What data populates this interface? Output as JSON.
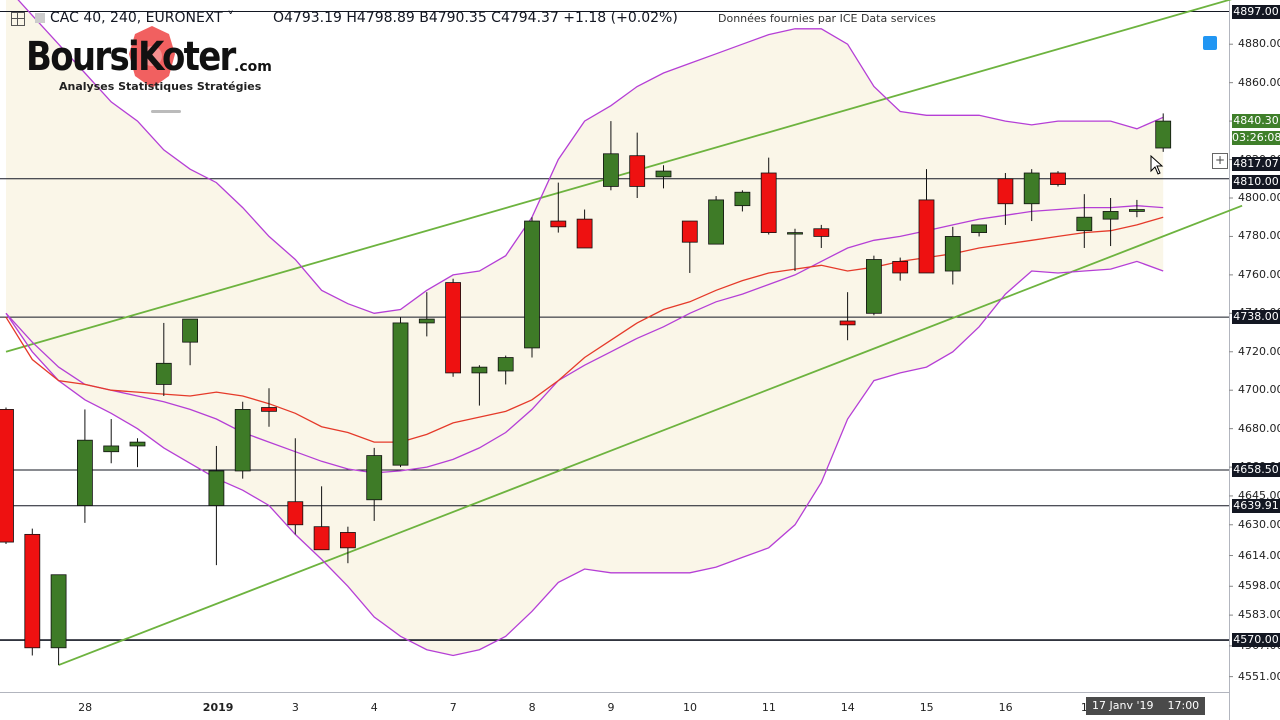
{
  "header": {
    "symbol": "CAC 40, 240, EURONEXT ˅",
    "ohlc": "O4793.19  H4798.89  B4790.35  C4794.37  +1.18 (+0.02%)",
    "source": "Données fournies par ICE Data services"
  },
  "logo": {
    "brand": "BoursiKoter",
    "domain": ".com",
    "tagline": "Analyses Statistiques Stratégies"
  },
  "tooltip": {
    "date": "17 Janv '19",
    "time": "17:00"
  },
  "price_tags": [
    {
      "label": "4897.00",
      "color": "#131722"
    },
    {
      "label": "4840.30",
      "color": "#3f7f2a"
    },
    {
      "label": "03:26:08",
      "color": "#3f7f2a"
    },
    {
      "label": "4817.07",
      "color": "#131722"
    },
    {
      "label": "4810.00",
      "color": "#131722"
    },
    {
      "label": "4738.00",
      "color": "#131722"
    },
    {
      "label": "4658.50",
      "color": "#131722"
    },
    {
      "label": "4639.91",
      "color": "#131722"
    },
    {
      "label": "4570.00",
      "color": "#131722"
    }
  ],
  "colors": {
    "up": "#3e7b27",
    "down": "#ee1111",
    "bollinger": "#b53fd6",
    "ma": "#e53a2a",
    "trend": "#6db33f",
    "band_fill": "#faf6e8"
  },
  "chart_data": {
    "type": "candlestick",
    "ylim": [
      4543,
      4903
    ],
    "yticks": [
      4551,
      4567,
      4583,
      4598,
      4614,
      4630,
      4645,
      4660,
      4680,
      4700,
      4720,
      4740,
      4760,
      4780,
      4800,
      4820,
      4840,
      4860,
      4880
    ],
    "ytick_labels": [
      "4551.00",
      "4567.00",
      "4583.00",
      "4598.00",
      "4614.00",
      "4630.00",
      "4645.00",
      "4660.00",
      "4680.00",
      "4700.00",
      "4720.00",
      "4740.00",
      "4760.00",
      "4780.00",
      "4800.00",
      "4820.00",
      "4840.00",
      "4860.00",
      "4880.00"
    ],
    "xtick_labels": [
      "28",
      "2019",
      "3",
      "4",
      "7",
      "8",
      "9",
      "10",
      "11",
      "14",
      "15",
      "16",
      "1"
    ],
    "xtick_positions": [
      3,
      8,
      11,
      14,
      17,
      20,
      23,
      26,
      29,
      32,
      35,
      38,
      41
    ],
    "horizontal_levels": [
      4897.0,
      4810.0,
      4738.0,
      4658.5,
      4639.91,
      4570.0
    ],
    "candles": [
      {
        "o": 4690,
        "h": 4691,
        "l": 4620,
        "c": 4621
      },
      {
        "o": 4625,
        "h": 4628,
        "l": 4562,
        "c": 4566
      },
      {
        "o": 4566,
        "h": 4604,
        "l": 4557,
        "c": 4604
      },
      {
        "o": 4640,
        "h": 4690,
        "l": 4631,
        "c": 4674
      },
      {
        "o": 4668,
        "h": 4685,
        "l": 4662,
        "c": 4671
      },
      {
        "o": 4671,
        "h": 4675,
        "l": 4660,
        "c": 4673
      },
      {
        "o": 4703,
        "h": 4735,
        "l": 4697,
        "c": 4714
      },
      {
        "o": 4725,
        "h": 4737,
        "l": 4713,
        "c": 4737
      },
      {
        "o": 4640,
        "h": 4671,
        "l": 4609,
        "c": 4658
      },
      {
        "o": 4658,
        "h": 4694,
        "l": 4654,
        "c": 4690
      },
      {
        "o": 4691,
        "h": 4701,
        "l": 4681,
        "c": 4689
      },
      {
        "o": 4642,
        "h": 4675,
        "l": 4625,
        "c": 4630
      },
      {
        "o": 4629,
        "h": 4650,
        "l": 4620,
        "c": 4617
      },
      {
        "o": 4626,
        "h": 4629,
        "l": 4610,
        "c": 4618
      },
      {
        "o": 4643,
        "h": 4670,
        "l": 4632,
        "c": 4666
      },
      {
        "o": 4661,
        "h": 4738,
        "l": 4660,
        "c": 4735
      },
      {
        "o": 4735,
        "h": 4751,
        "l": 4728,
        "c": 4737
      },
      {
        "o": 4756,
        "h": 4758,
        "l": 4707,
        "c": 4709
      },
      {
        "o": 4709,
        "h": 4713,
        "l": 4692,
        "c": 4712
      },
      {
        "o": 4710,
        "h": 4718,
        "l": 4703,
        "c": 4717
      },
      {
        "o": 4722,
        "h": 4790,
        "l": 4717,
        "c": 4788
      },
      {
        "o": 4788,
        "h": 4808,
        "l": 4782,
        "c": 4785
      },
      {
        "o": 4789,
        "h": 4794,
        "l": 4774,
        "c": 4774
      },
      {
        "o": 4806,
        "h": 4840,
        "l": 4804,
        "c": 4823
      },
      {
        "o": 4822,
        "h": 4834,
        "l": 4800,
        "c": 4806
      },
      {
        "o": 4811,
        "h": 4817,
        "l": 4805,
        "c": 4814
      },
      {
        "o": 4788,
        "h": 4788,
        "l": 4761,
        "c": 4777
      },
      {
        "o": 4776,
        "h": 4801,
        "l": 4776,
        "c": 4799
      },
      {
        "o": 4796,
        "h": 4804,
        "l": 4793,
        "c": 4803
      },
      {
        "o": 4813,
        "h": 4821,
        "l": 4781,
        "c": 4782
      },
      {
        "o": 4782,
        "h": 4784,
        "l": 4762,
        "c": 4782
      },
      {
        "o": 4784,
        "h": 4786,
        "l": 4774,
        "c": 4780
      },
      {
        "o": 4736,
        "h": 4751,
        "l": 4726,
        "c": 4734
      },
      {
        "o": 4740,
        "h": 4770,
        "l": 4739,
        "c": 4768
      },
      {
        "o": 4767,
        "h": 4769,
        "l": 4757,
        "c": 4761
      },
      {
        "o": 4799,
        "h": 4815,
        "l": 4761,
        "c": 4761
      },
      {
        "o": 4762,
        "h": 4785,
        "l": 4755,
        "c": 4780
      },
      {
        "o": 4782,
        "h": 4786,
        "l": 4780,
        "c": 4786
      },
      {
        "o": 4810,
        "h": 4813,
        "l": 4786,
        "c": 4797
      },
      {
        "o": 4797,
        "h": 4815,
        "l": 4788,
        "c": 4813
      },
      {
        "o": 4813,
        "h": 4814,
        "l": 4806,
        "c": 4807
      },
      {
        "o": 4783,
        "h": 4802,
        "l": 4774,
        "c": 4790
      },
      {
        "o": 4789,
        "h": 4800,
        "l": 4775,
        "c": 4793
      },
      {
        "o": 4793,
        "h": 4799,
        "l": 4790,
        "c": 4794
      },
      {
        "o": 4826,
        "h": 4844,
        "l": 4824,
        "c": 4840
      }
    ],
    "bollinger_upper": [
      4910,
      4895,
      4880,
      4865,
      4850,
      4840,
      4825,
      4815,
      4808,
      4795,
      4780,
      4768,
      4752,
      4745,
      4740,
      4742,
      4752,
      4760,
      4762,
      4770,
      4790,
      4820,
      4840,
      4848,
      4858,
      4865,
      4870,
      4875,
      4880,
      4885,
      4888,
      4888,
      4880,
      4858,
      4845,
      4843,
      4843,
      4843,
      4840,
      4838,
      4840,
      4840,
      4840,
      4836,
      4842
    ],
    "bollinger_lower": [
      4740,
      4720,
      4705,
      4695,
      4688,
      4680,
      4670,
      4662,
      4654,
      4648,
      4640,
      4625,
      4612,
      4598,
      4582,
      4572,
      4565,
      4562,
      4565,
      4572,
      4585,
      4600,
      4607,
      4605,
      4605,
      4605,
      4605,
      4608,
      4613,
      4618,
      4630,
      4652,
      4685,
      4705,
      4709,
      4712,
      4720,
      4733,
      4750,
      4762,
      4761,
      4762,
      4763,
      4767,
      4762
    ],
    "bollinger_middle": [
      4740,
      4725,
      4712,
      4703,
      4700,
      4697,
      4694,
      4690,
      4685,
      4678,
      4673,
      4668,
      4663,
      4659,
      4657,
      4658,
      4660,
      4664,
      4670,
      4678,
      4690,
      4705,
      4713,
      4720,
      4727,
      4733,
      4740,
      4746,
      4750,
      4755,
      4760,
      4767,
      4774,
      4778,
      4780,
      4783,
      4786,
      4789,
      4791,
      4793,
      4794,
      4795,
      4795,
      4796,
      4795
    ],
    "ma_red": [
      4738,
      4716,
      4705,
      4703,
      4700,
      4699,
      4698,
      4697,
      4699,
      4697,
      4693,
      4688,
      4681,
      4678,
      4673,
      4673,
      4677,
      4683,
      4686,
      4689,
      4695,
      4705,
      4717,
      4726,
      4735,
      4742,
      4746,
      4752,
      4757,
      4761,
      4763,
      4765,
      4762,
      4764,
      4767,
      4769,
      4771,
      4774,
      4776,
      4778,
      4780,
      4782,
      4783,
      4786,
      4790
    ],
    "trend_lines": [
      {
        "x0": 0,
        "y0": 4720,
        "x1": 47,
        "y1": 4905
      },
      {
        "x0": 2,
        "y0": 4557,
        "x1": 47,
        "y1": 4796
      }
    ]
  }
}
